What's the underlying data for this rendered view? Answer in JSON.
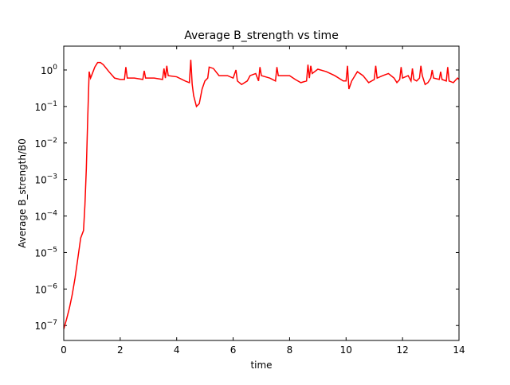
{
  "chart_data": {
    "type": "line",
    "title": "Average B_strength vs time",
    "xlabel": "time",
    "ylabel": "Average B_strength/B0",
    "color": "#ff0000",
    "yscale": "log",
    "x": [
      0.0,
      0.1,
      0.2,
      0.3,
      0.4,
      0.5,
      0.6,
      0.7,
      0.75,
      0.8,
      0.85,
      0.9,
      0.95,
      1.0,
      1.1,
      1.2,
      1.3,
      1.4,
      1.6,
      1.8,
      2.0,
      2.15,
      2.2,
      2.25,
      2.5,
      2.8,
      2.85,
      2.9,
      3.2,
      3.5,
      3.55,
      3.6,
      3.65,
      3.7,
      4.0,
      4.3,
      4.45,
      4.5,
      4.55,
      4.6,
      4.7,
      4.8,
      4.9,
      5.0,
      5.1,
      5.15,
      5.3,
      5.5,
      5.8,
      6.0,
      6.1,
      6.15,
      6.3,
      6.5,
      6.6,
      6.8,
      6.9,
      6.95,
      7.0,
      7.3,
      7.5,
      7.55,
      7.6,
      8.0,
      8.2,
      8.4,
      8.6,
      8.65,
      8.7,
      8.75,
      8.8,
      9.0,
      9.3,
      9.6,
      9.9,
      10.0,
      10.05,
      10.1,
      10.2,
      10.4,
      10.6,
      10.8,
      11.0,
      11.05,
      11.1,
      11.3,
      11.5,
      11.7,
      11.8,
      11.9,
      11.95,
      12.0,
      12.2,
      12.3,
      12.35,
      12.4,
      12.5,
      12.6,
      12.65,
      12.7,
      12.8,
      12.9,
      13.0,
      13.05,
      13.1,
      13.3,
      13.35,
      13.4,
      13.55,
      13.6,
      13.65,
      13.8,
      13.9,
      13.95,
      14.0
    ],
    "values": [
      8e-08,
      1.5e-07,
      3e-07,
      7e-07,
      2e-06,
      7e-06,
      2.5e-05,
      4e-05,
      0.0002,
      0.002,
      0.05,
      0.9,
      0.6,
      0.75,
      1.2,
      1.6,
      1.6,
      1.4,
      0.9,
      0.6,
      0.55,
      0.55,
      1.2,
      0.6,
      0.6,
      0.55,
      0.95,
      0.6,
      0.6,
      0.55,
      1.1,
      0.6,
      1.3,
      0.7,
      0.65,
      0.5,
      0.45,
      1.9,
      0.4,
      0.2,
      0.1,
      0.12,
      0.3,
      0.5,
      0.6,
      1.2,
      1.1,
      0.7,
      0.7,
      0.6,
      1.0,
      0.5,
      0.4,
      0.5,
      0.7,
      0.8,
      0.5,
      1.2,
      0.7,
      0.6,
      0.5,
      1.2,
      0.7,
      0.7,
      0.55,
      0.45,
      0.5,
      1.4,
      0.6,
      1.3,
      0.8,
      1.05,
      0.9,
      0.7,
      0.5,
      0.5,
      1.3,
      0.3,
      0.5,
      0.9,
      0.7,
      0.45,
      0.55,
      1.3,
      0.6,
      0.7,
      0.8,
      0.6,
      0.45,
      0.55,
      1.2,
      0.6,
      0.7,
      0.5,
      1.1,
      0.55,
      0.5,
      0.6,
      1.3,
      0.7,
      0.4,
      0.45,
      0.6,
      1.0,
      0.6,
      0.55,
      0.9,
      0.55,
      0.5,
      1.2,
      0.5,
      0.45,
      0.55,
      0.6,
      0.55
    ],
    "xlim": [
      0,
      14
    ],
    "xticks": [
      0,
      2,
      4,
      6,
      8,
      10,
      12,
      14
    ],
    "ylim": [
      3.9e-08,
      4.5
    ],
    "yticks": [
      {
        "value": 1e-07,
        "label": "10",
        "exponent": "−7"
      },
      {
        "value": 1e-06,
        "label": "10",
        "exponent": "−6"
      },
      {
        "value": 1e-05,
        "label": "10",
        "exponent": "−5"
      },
      {
        "value": 0.0001,
        "label": "10",
        "exponent": "−4"
      },
      {
        "value": 0.001,
        "label": "10",
        "exponent": "−3"
      },
      {
        "value": 0.01,
        "label": "10",
        "exponent": "−2"
      },
      {
        "value": 0.1,
        "label": "10",
        "exponent": "−1"
      },
      {
        "value": 1,
        "label": "10",
        "exponent": "0"
      }
    ]
  }
}
